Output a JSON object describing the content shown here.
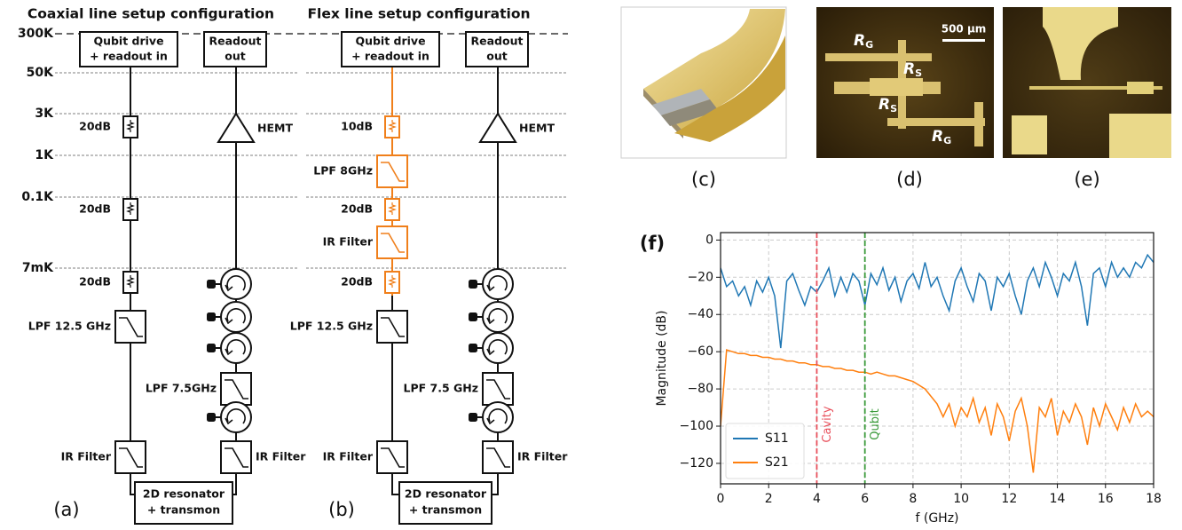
{
  "panels": {
    "a": {
      "label": "(a)",
      "title": "Coaxial line setup configuration",
      "stages": [
        "300K",
        "50K",
        "3K",
        "1K",
        "0.1K",
        "7mK"
      ],
      "input_box": [
        "Qubit drive",
        "+ readout in"
      ],
      "output_box": [
        "Readout",
        "out"
      ],
      "drive_components": [
        {
          "kind": "attenuator",
          "label": "20dB"
        },
        {
          "kind": "attenuator",
          "label": "20dB"
        },
        {
          "kind": "attenuator",
          "label": "20dB"
        },
        {
          "kind": "filter",
          "label": "LPF 12.5 GHz"
        },
        {
          "kind": "filter",
          "label": "IR Filter"
        }
      ],
      "readout_components": [
        {
          "kind": "amplifier",
          "label": "HEMT"
        },
        {
          "kind": "circulator"
        },
        {
          "kind": "circulator"
        },
        {
          "kind": "circulator"
        },
        {
          "kind": "filter",
          "label": "LPF 7.5GHz"
        },
        {
          "kind": "circulator"
        },
        {
          "kind": "filter",
          "label": "IR Filter"
        }
      ],
      "sample": [
        "2D resonator",
        "+ transmon"
      ]
    },
    "b": {
      "label": "(b)",
      "title": "Flex line setup configuration",
      "highlight_color": "#f07f1a",
      "input_box": [
        "Qubit drive",
        "+ readout in"
      ],
      "output_box": [
        "Readout",
        "out"
      ],
      "drive_components": [
        {
          "kind": "attenuator",
          "label": "10dB",
          "highlighted": true
        },
        {
          "kind": "filter",
          "label": "LPF 8GHz",
          "highlighted": true
        },
        {
          "kind": "attenuator",
          "label": "20dB",
          "highlighted": true
        },
        {
          "kind": "filter",
          "label": "IR Filter",
          "highlighted": true
        },
        {
          "kind": "attenuator",
          "label": "20dB",
          "highlighted": true
        },
        {
          "kind": "filter",
          "label": "LPF 12.5 GHz"
        },
        {
          "kind": "filter",
          "label": "IR Filter"
        }
      ],
      "readout_components": [
        {
          "kind": "amplifier",
          "label": "HEMT"
        },
        {
          "kind": "circulator"
        },
        {
          "kind": "circulator"
        },
        {
          "kind": "circulator"
        },
        {
          "kind": "filter",
          "label": "LPF 7.5 GHz"
        },
        {
          "kind": "circulator"
        },
        {
          "kind": "filter",
          "label": "IR Filter"
        }
      ],
      "sample": [
        "2D resonator",
        "+ transmon"
      ]
    },
    "c": {
      "label": "(c)"
    },
    "d": {
      "label": "(d)",
      "scale_bar": "500 µm",
      "labels": [
        {
          "main": "R",
          "sub": "G"
        },
        {
          "main": "R",
          "sub": "S"
        },
        {
          "main": "R",
          "sub": "S"
        },
        {
          "main": "R",
          "sub": "G"
        }
      ]
    },
    "e": {
      "label": "(e)"
    }
  },
  "chart_data": {
    "type": "line",
    "label": "(f)",
    "xlabel": "f (GHz)",
    "ylabel": "Magnitude (dB)",
    "x": [
      0,
      0.25,
      0.5,
      0.75,
      1,
      1.25,
      1.5,
      1.75,
      2,
      2.25,
      2.5,
      2.75,
      3,
      3.25,
      3.5,
      3.75,
      4,
      4.25,
      4.5,
      4.75,
      5,
      5.25,
      5.5,
      5.75,
      6,
      6.25,
      6.5,
      6.75,
      7,
      7.25,
      7.5,
      7.75,
      8,
      8.25,
      8.5,
      8.75,
      9,
      9.25,
      9.5,
      9.75,
      10,
      10.25,
      10.5,
      10.75,
      11,
      11.25,
      11.5,
      11.75,
      12,
      12.25,
      12.5,
      12.75,
      13,
      13.25,
      13.5,
      13.75,
      14,
      14.25,
      14.5,
      14.75,
      15,
      15.25,
      15.5,
      15.75,
      16,
      16.25,
      16.5,
      16.75,
      17,
      17.25,
      17.5,
      17.75,
      18
    ],
    "series": [
      {
        "name": "S11",
        "color": "#1f77b4",
        "values": [
          -15,
          -25,
          -22,
          -30,
          -25,
          -35,
          -22,
          -28,
          -20,
          -30,
          -58,
          -22,
          -18,
          -27,
          -35,
          -25,
          -28,
          -22,
          -15,
          -30,
          -20,
          -28,
          -18,
          -22,
          -35,
          -18,
          -24,
          -15,
          -27,
          -20,
          -33,
          -22,
          -18,
          -26,
          -12,
          -25,
          -20,
          -30,
          -38,
          -22,
          -15,
          -25,
          -33,
          -18,
          -22,
          -38,
          -20,
          -25,
          -18,
          -30,
          -40,
          -22,
          -15,
          -25,
          -12,
          -20,
          -30,
          -18,
          -22,
          -12,
          -25,
          -46,
          -18,
          -15,
          -25,
          -12,
          -20,
          -15,
          -20,
          -12,
          -15,
          -8,
          -12
        ]
      },
      {
        "name": "S21",
        "color": "#ff7f0e",
        "values": [
          -100,
          -59,
          -60,
          -61,
          -61,
          -62,
          -62,
          -63,
          -63,
          -64,
          -64,
          -65,
          -65,
          -66,
          -66,
          -67,
          -67,
          -68,
          -68,
          -69,
          -69,
          -70,
          -70,
          -71,
          -71,
          -72,
          -71,
          -72,
          -73,
          -73,
          -74,
          -75,
          -76,
          -78,
          -80,
          -84,
          -88,
          -95,
          -88,
          -100,
          -90,
          -95,
          -85,
          -98,
          -90,
          -105,
          -88,
          -95,
          -108,
          -92,
          -85,
          -100,
          -125,
          -90,
          -95,
          -85,
          -105,
          -92,
          -98,
          -88,
          -95,
          -110,
          -90,
          -100,
          -88,
          -95,
          -102,
          -90,
          -98,
          -88,
          -95,
          -92,
          -95
        ]
      }
    ],
    "xlim": [
      0,
      18
    ],
    "xticks": [
      0,
      2,
      4,
      6,
      8,
      10,
      12,
      14,
      16,
      18
    ],
    "ylim": [
      -131,
      4
    ],
    "yticks": [
      0,
      {
        "value": -20,
        "label": "−20"
      },
      {
        "value": -40,
        "label": "−40"
      },
      {
        "value": -60,
        "label": "−60"
      },
      {
        "value": -80,
        "label": "−80"
      },
      {
        "value": -100,
        "label": "−100"
      },
      {
        "value": -120,
        "label": "−120"
      }
    ],
    "grid": true,
    "legend": "lower left",
    "markers": [
      {
        "x": 4,
        "label": "Cavity",
        "color": "#e8505b"
      },
      {
        "x": 6,
        "label": "Qubit",
        "color": "#3a9a3a"
      }
    ]
  }
}
